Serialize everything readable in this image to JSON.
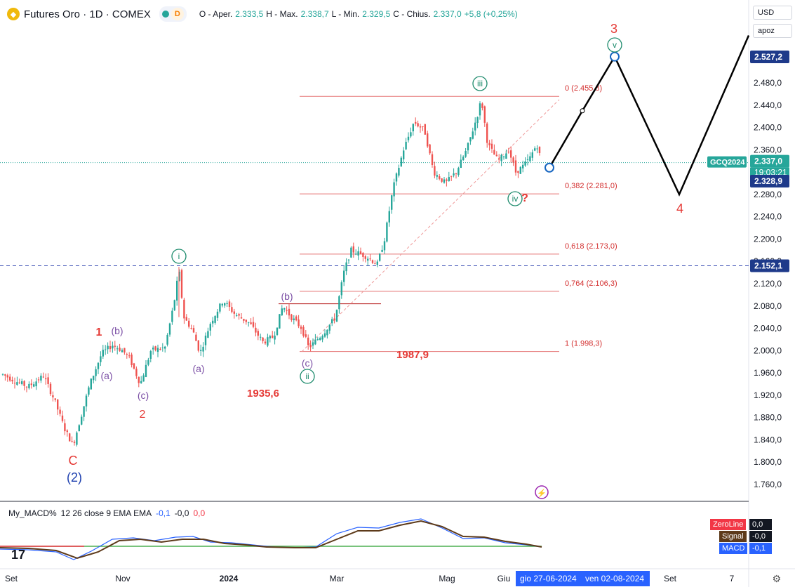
{
  "header": {
    "symbol": "Futures Oro · 1D · COMEX",
    "badge": "D",
    "open_label": "O - Aper.",
    "open": "2.333,5",
    "high_label": "H - Max.",
    "high": "2.338,7",
    "low_label": "L - Min.",
    "low": "2.329,5",
    "close_label": "C - Chius.",
    "close": "2.337,0",
    "change": "+5,8 (+0,25%)"
  },
  "currency": "USD",
  "unit": "apoz",
  "chart_data": {
    "type": "candlestick",
    "y_ticks": [
      "2.480,0",
      "2.440,0",
      "2.400,0",
      "2.360,0",
      "2.320,0",
      "2.280,0",
      "2.240,0",
      "2.200,0",
      "2.160,0",
      "2.120,0",
      "2.080,0",
      "2.040,0",
      "2.000,0",
      "1.960,0",
      "1.920,0",
      "1.880,0",
      "1.840,0",
      "1.800,0",
      "1.760,0"
    ],
    "y_tick_values": [
      2480,
      2440,
      2400,
      2360,
      2320,
      2280,
      2240,
      2200,
      2160,
      2120,
      2080,
      2040,
      2000,
      1960,
      1920,
      1880,
      1840,
      1800,
      1760
    ],
    "x_ticks": [
      "Set",
      "Nov",
      "2024",
      "Mar",
      "Mag",
      "Giu",
      "Set",
      "7"
    ],
    "price_path": [
      [
        0,
        1960
      ],
      [
        18,
        1948
      ],
      [
        40,
        1935
      ],
      [
        62,
        1955
      ],
      [
        78,
        1910
      ],
      [
        92,
        1860
      ],
      [
        104,
        1830
      ],
      [
        115,
        1880
      ],
      [
        128,
        1940
      ],
      [
        145,
        1995
      ],
      [
        160,
        2010
      ],
      [
        175,
        2000
      ],
      [
        185,
        1985
      ],
      [
        200,
        1940
      ],
      [
        215,
        2000
      ],
      [
        235,
        2005
      ],
      [
        248,
        2085
      ],
      [
        255,
        2145
      ],
      [
        262,
        2060
      ],
      [
        275,
        2035
      ],
      [
        285,
        1995
      ],
      [
        300,
        2050
      ],
      [
        318,
        2090
      ],
      [
        335,
        2065
      ],
      [
        355,
        2050
      ],
      [
        375,
        2015
      ],
      [
        390,
        2025
      ],
      [
        403,
        2080
      ],
      [
        415,
        2060
      ],
      [
        430,
        2040
      ],
      [
        440,
        2005
      ],
      [
        460,
        2030
      ],
      [
        478,
        2060
      ],
      [
        490,
        2140
      ],
      [
        500,
        2180
      ],
      [
        520,
        2170
      ],
      [
        538,
        2155
      ],
      [
        548,
        2200
      ],
      [
        560,
        2290
      ],
      [
        575,
        2360
      ],
      [
        590,
        2410
      ],
      [
        605,
        2395
      ],
      [
        618,
        2320
      ],
      [
        635,
        2300
      ],
      [
        650,
        2320
      ],
      [
        665,
        2360
      ],
      [
        680,
        2420
      ],
      [
        686,
        2450
      ],
      [
        695,
        2370
      ],
      [
        710,
        2340
      ],
      [
        725,
        2360
      ],
      [
        735,
        2320
      ],
      [
        745,
        2330
      ],
      [
        755,
        2345
      ],
      [
        765,
        2370
      ],
      [
        772,
        2337
      ]
    ],
    "projection": {
      "points": [
        "2.337,0",
        "2.527,2",
        "2.280,0",
        "2.565,0"
      ],
      "labels": [
        "3",
        "4"
      ]
    },
    "fib_levels": [
      {
        "label": "0 (2.455,8)",
        "value": 2455.8
      },
      {
        "label": "0,382 (2.281,0)",
        "value": 2281.0
      },
      {
        "label": "0,618 (2.173,0)",
        "value": 2173.0
      },
      {
        "label": "0,764 (2.106,3)",
        "value": 2106.3
      },
      {
        "label": "1 (1.998,3)",
        "value": 1998.3
      }
    ],
    "price_labels": {
      "target": "2.527,2",
      "last_symbol": "GCQ2024",
      "last": "2.337,0",
      "countdown": "19:03:21",
      "low_day": "2.328,9",
      "hline": "2.152,1"
    },
    "text_annotations": [
      "1935,6",
      "1987,9"
    ],
    "wave_labels": {
      "C": "C",
      "two_big": "(2)",
      "one": "1",
      "b1": "(b)",
      "a1": "(a)",
      "c1": "(c)",
      "two": "2",
      "i": "i",
      "a2": "(a)",
      "b2": "(b)",
      "c2": "(c)",
      "ii": "ii",
      "iii": "iii",
      "iv": "iv",
      "q": "?",
      "v": "v",
      "three": "3",
      "four": "4"
    }
  },
  "macd": {
    "name": "My_MACD%",
    "params": "12 26 close 9 EMA EMA",
    "v1": "-0,1",
    "v2": "-0,0",
    "v3": "0,0",
    "legend": [
      {
        "name": "ZeroLine",
        "value": "0,0",
        "color": "#f23645"
      },
      {
        "name": "Signal",
        "value": "-0,0",
        "color": "#5d3a1a"
      },
      {
        "name": "MACD",
        "value": "-0,1",
        "color": "#2962ff"
      }
    ]
  },
  "bottom": {
    "date_cursor": "gio 27-06-2024",
    "date_end": "ven 02-08-2024"
  }
}
